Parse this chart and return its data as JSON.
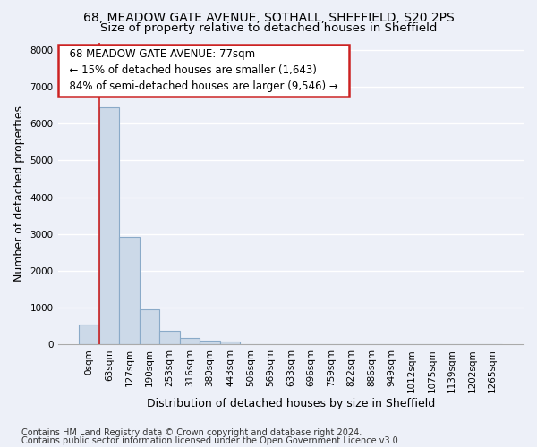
{
  "title_line1": "68, MEADOW GATE AVENUE, SOTHALL, SHEFFIELD, S20 2PS",
  "title_line2": "Size of property relative to detached houses in Sheffield",
  "xlabel": "Distribution of detached houses by size in Sheffield",
  "ylabel": "Number of detached properties",
  "footnote1": "Contains HM Land Registry data © Crown copyright and database right 2024.",
  "footnote2": "Contains public sector information licensed under the Open Government Licence v3.0.",
  "bar_labels": [
    "0sqm",
    "63sqm",
    "127sqm",
    "190sqm",
    "253sqm",
    "316sqm",
    "380sqm",
    "443sqm",
    "506sqm",
    "569sqm",
    "633sqm",
    "696sqm",
    "759sqm",
    "822sqm",
    "886sqm",
    "949sqm",
    "1012sqm",
    "1075sqm",
    "1139sqm",
    "1202sqm",
    "1265sqm"
  ],
  "bar_values": [
    540,
    6430,
    2920,
    960,
    380,
    175,
    100,
    75,
    0,
    0,
    0,
    0,
    0,
    0,
    0,
    0,
    0,
    0,
    0,
    0,
    0
  ],
  "bar_color": "#ccd9e8",
  "bar_edge_color": "#8aaac8",
  "annotation_title": "68 MEADOW GATE AVENUE: 77sqm",
  "annotation_line2": "← 15% of detached houses are smaller (1,643)",
  "annotation_line3": "84% of semi-detached houses are larger (9,546) →",
  "annotation_box_facecolor": "#ffffff",
  "annotation_border_color": "#cc2222",
  "vline_color": "#cc2222",
  "vline_x": 0.5,
  "ylim": [
    0,
    8200
  ],
  "yticks": [
    0,
    1000,
    2000,
    3000,
    4000,
    5000,
    6000,
    7000,
    8000
  ],
  "bg_color": "#edf0f8",
  "plot_bg_color": "#edf0f8",
  "grid_color": "#ffffff",
  "title_fontsize": 10,
  "subtitle_fontsize": 9.5,
  "axis_label_fontsize": 9,
  "tick_fontsize": 7.5,
  "annotation_fontsize": 8.5,
  "footnote_fontsize": 7
}
